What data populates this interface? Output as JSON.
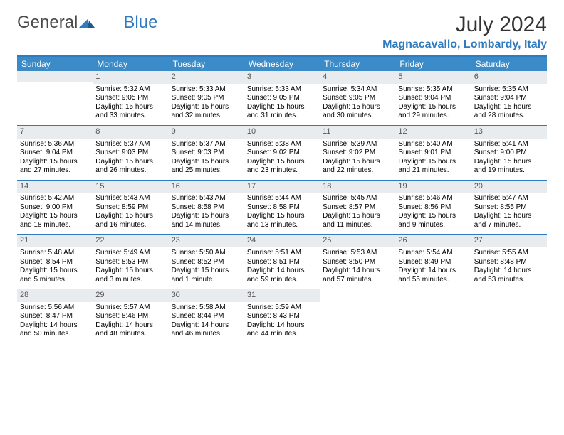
{
  "logo": {
    "part1": "General",
    "part2": "Blue"
  },
  "title": "July 2024",
  "subtitle": "Magnacavallo, Lombardy, Italy",
  "colors": {
    "header_bg": "#3b8bc8",
    "header_text": "#ffffff",
    "accent_rule": "#2f7bbf",
    "daynum_bg": "#e8ecef",
    "daynum_text": "#555555",
    "body_text": "#000000",
    "logo_gray": "#4a4a4a",
    "logo_blue": "#2f7bbf"
  },
  "day_headers": [
    "Sunday",
    "Monday",
    "Tuesday",
    "Wednesday",
    "Thursday",
    "Friday",
    "Saturday"
  ],
  "weeks": [
    [
      null,
      {
        "n": "1",
        "sunrise": "5:32 AM",
        "sunset": "9:05 PM",
        "daylight": "15 hours and 33 minutes."
      },
      {
        "n": "2",
        "sunrise": "5:33 AM",
        "sunset": "9:05 PM",
        "daylight": "15 hours and 32 minutes."
      },
      {
        "n": "3",
        "sunrise": "5:33 AM",
        "sunset": "9:05 PM",
        "daylight": "15 hours and 31 minutes."
      },
      {
        "n": "4",
        "sunrise": "5:34 AM",
        "sunset": "9:05 PM",
        "daylight": "15 hours and 30 minutes."
      },
      {
        "n": "5",
        "sunrise": "5:35 AM",
        "sunset": "9:04 PM",
        "daylight": "15 hours and 29 minutes."
      },
      {
        "n": "6",
        "sunrise": "5:35 AM",
        "sunset": "9:04 PM",
        "daylight": "15 hours and 28 minutes."
      }
    ],
    [
      {
        "n": "7",
        "sunrise": "5:36 AM",
        "sunset": "9:04 PM",
        "daylight": "15 hours and 27 minutes."
      },
      {
        "n": "8",
        "sunrise": "5:37 AM",
        "sunset": "9:03 PM",
        "daylight": "15 hours and 26 minutes."
      },
      {
        "n": "9",
        "sunrise": "5:37 AM",
        "sunset": "9:03 PM",
        "daylight": "15 hours and 25 minutes."
      },
      {
        "n": "10",
        "sunrise": "5:38 AM",
        "sunset": "9:02 PM",
        "daylight": "15 hours and 23 minutes."
      },
      {
        "n": "11",
        "sunrise": "5:39 AM",
        "sunset": "9:02 PM",
        "daylight": "15 hours and 22 minutes."
      },
      {
        "n": "12",
        "sunrise": "5:40 AM",
        "sunset": "9:01 PM",
        "daylight": "15 hours and 21 minutes."
      },
      {
        "n": "13",
        "sunrise": "5:41 AM",
        "sunset": "9:00 PM",
        "daylight": "15 hours and 19 minutes."
      }
    ],
    [
      {
        "n": "14",
        "sunrise": "5:42 AM",
        "sunset": "9:00 PM",
        "daylight": "15 hours and 18 minutes."
      },
      {
        "n": "15",
        "sunrise": "5:43 AM",
        "sunset": "8:59 PM",
        "daylight": "15 hours and 16 minutes."
      },
      {
        "n": "16",
        "sunrise": "5:43 AM",
        "sunset": "8:58 PM",
        "daylight": "15 hours and 14 minutes."
      },
      {
        "n": "17",
        "sunrise": "5:44 AM",
        "sunset": "8:58 PM",
        "daylight": "15 hours and 13 minutes."
      },
      {
        "n": "18",
        "sunrise": "5:45 AM",
        "sunset": "8:57 PM",
        "daylight": "15 hours and 11 minutes."
      },
      {
        "n": "19",
        "sunrise": "5:46 AM",
        "sunset": "8:56 PM",
        "daylight": "15 hours and 9 minutes."
      },
      {
        "n": "20",
        "sunrise": "5:47 AM",
        "sunset": "8:55 PM",
        "daylight": "15 hours and 7 minutes."
      }
    ],
    [
      {
        "n": "21",
        "sunrise": "5:48 AM",
        "sunset": "8:54 PM",
        "daylight": "15 hours and 5 minutes."
      },
      {
        "n": "22",
        "sunrise": "5:49 AM",
        "sunset": "8:53 PM",
        "daylight": "15 hours and 3 minutes."
      },
      {
        "n": "23",
        "sunrise": "5:50 AM",
        "sunset": "8:52 PM",
        "daylight": "15 hours and 1 minute."
      },
      {
        "n": "24",
        "sunrise": "5:51 AM",
        "sunset": "8:51 PM",
        "daylight": "14 hours and 59 minutes."
      },
      {
        "n": "25",
        "sunrise": "5:53 AM",
        "sunset": "8:50 PM",
        "daylight": "14 hours and 57 minutes."
      },
      {
        "n": "26",
        "sunrise": "5:54 AM",
        "sunset": "8:49 PM",
        "daylight": "14 hours and 55 minutes."
      },
      {
        "n": "27",
        "sunrise": "5:55 AM",
        "sunset": "8:48 PM",
        "daylight": "14 hours and 53 minutes."
      }
    ],
    [
      {
        "n": "28",
        "sunrise": "5:56 AM",
        "sunset": "8:47 PM",
        "daylight": "14 hours and 50 minutes."
      },
      {
        "n": "29",
        "sunrise": "5:57 AM",
        "sunset": "8:46 PM",
        "daylight": "14 hours and 48 minutes."
      },
      {
        "n": "30",
        "sunrise": "5:58 AM",
        "sunset": "8:44 PM",
        "daylight": "14 hours and 46 minutes."
      },
      {
        "n": "31",
        "sunrise": "5:59 AM",
        "sunset": "8:43 PM",
        "daylight": "14 hours and 44 minutes."
      },
      null,
      null,
      null
    ]
  ],
  "labels": {
    "sunrise": "Sunrise:",
    "sunset": "Sunset:",
    "daylight": "Daylight:"
  }
}
